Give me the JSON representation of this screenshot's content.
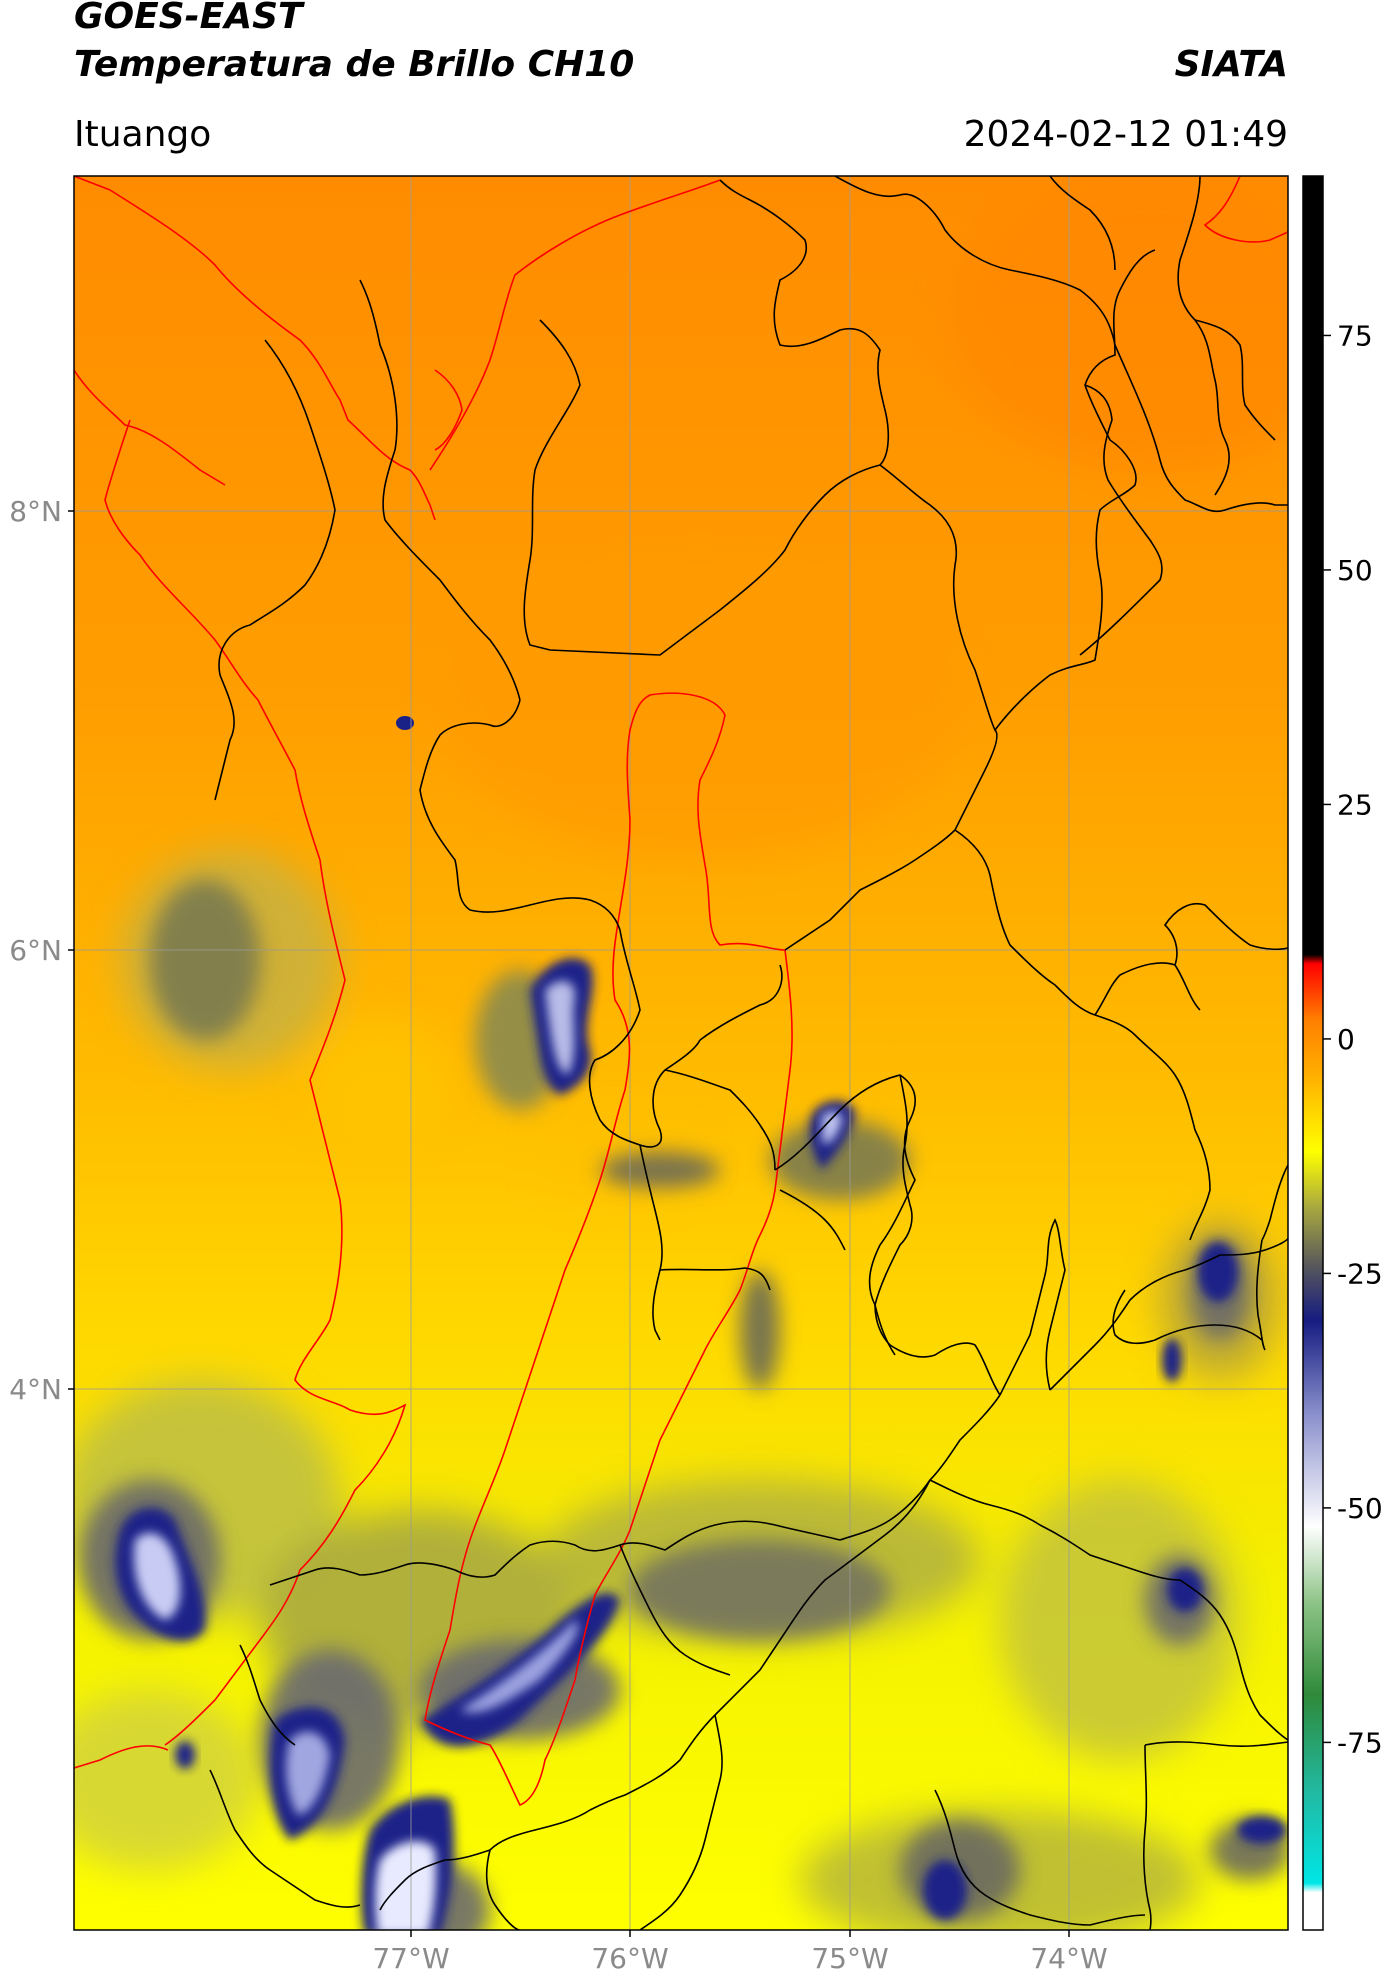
{
  "header": {
    "satellite": "GOES-EAST",
    "product": "Temperatura de Brillo CH10",
    "organization": "SIATA",
    "location": "Ituango",
    "datetime": "2024-02-12 01:49"
  },
  "map": {
    "lat_labels": [
      "8°N",
      "6°N",
      "4°N"
    ],
    "lon_labels": [
      "77°W",
      "76°W",
      "75°W",
      "74°W"
    ],
    "colorbar": {
      "ticks": [
        "75",
        "50",
        "25",
        "0",
        "-25",
        "-50",
        "-75"
      ],
      "range": [
        -95,
        92
      ],
      "stops": [
        {
          "v": -95,
          "c": "#ffffff"
        },
        {
          "v": -91,
          "c": "#ffffff"
        },
        {
          "v": -90,
          "c": "#00e6e6"
        },
        {
          "v": -80,
          "c": "#22b8a0"
        },
        {
          "v": -70,
          "c": "#2e8a3a"
        },
        {
          "v": -60,
          "c": "#8fc488"
        },
        {
          "v": -52,
          "c": "#ffffff"
        },
        {
          "v": -40,
          "c": "#8a90cc"
        },
        {
          "v": -30,
          "c": "#161c80"
        },
        {
          "v": -24,
          "c": "#5a5a5a"
        },
        {
          "v": -18,
          "c": "#a8a840"
        },
        {
          "v": -12,
          "c": "#ffff00"
        },
        {
          "v": -4,
          "c": "#ffb000"
        },
        {
          "v": 2,
          "c": "#ff8000"
        },
        {
          "v": 8,
          "c": "#ff0000"
        },
        {
          "v": 9,
          "c": "#000000"
        },
        {
          "v": 92,
          "c": "#000000"
        }
      ]
    }
  }
}
